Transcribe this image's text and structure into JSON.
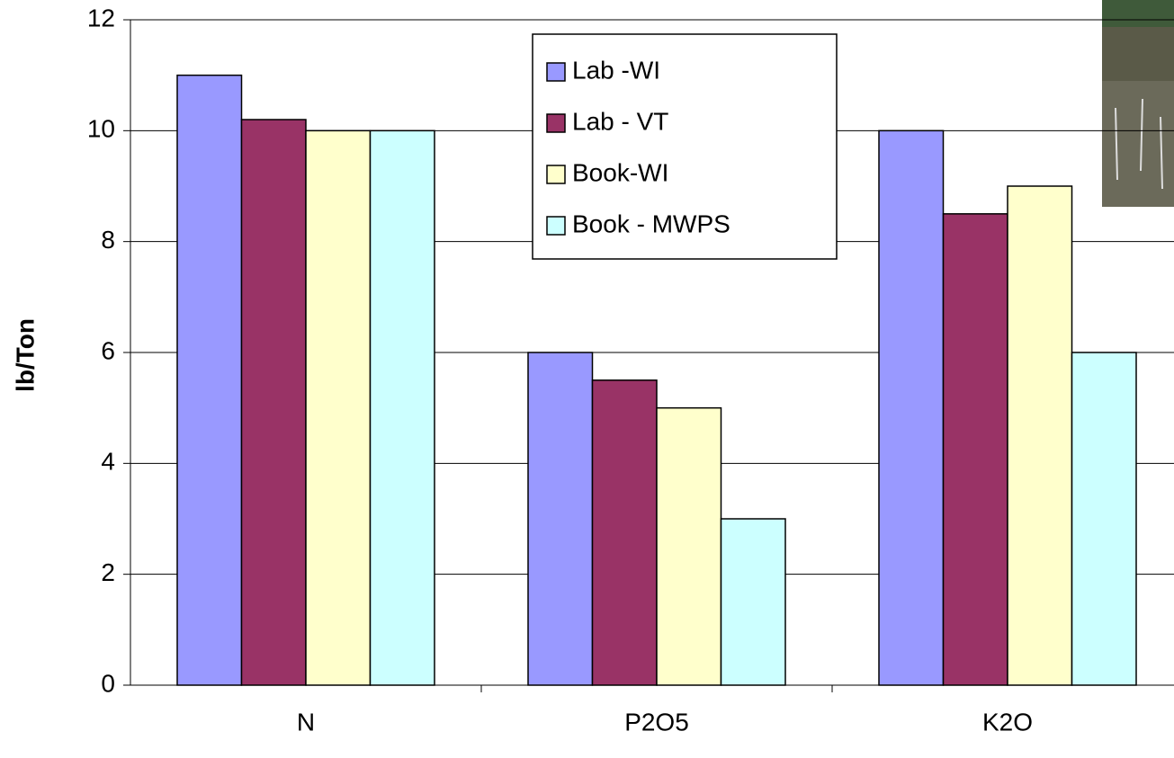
{
  "chart_data": {
    "type": "bar",
    "y_label": "lb/Ton",
    "categories": [
      "N",
      "P2O5",
      "K2O"
    ],
    "series": [
      {
        "name": "Lab -WI",
        "color": "#9999ff",
        "values": [
          11,
          6,
          10
        ]
      },
      {
        "name": "Lab - VT",
        "color": "#993366",
        "values": [
          10.2,
          5.5,
          8.5
        ]
      },
      {
        "name": "Book-WI",
        "color": "#ffffcc",
        "values": [
          10,
          5,
          9
        ]
      },
      {
        "name": "Book - MWPS",
        "color": "#ccffff",
        "values": [
          10,
          3,
          6
        ]
      }
    ],
    "ylim": [
      0,
      12
    ],
    "yticks": [
      0,
      2,
      4,
      6,
      8,
      10,
      12
    ],
    "grid": true
  }
}
